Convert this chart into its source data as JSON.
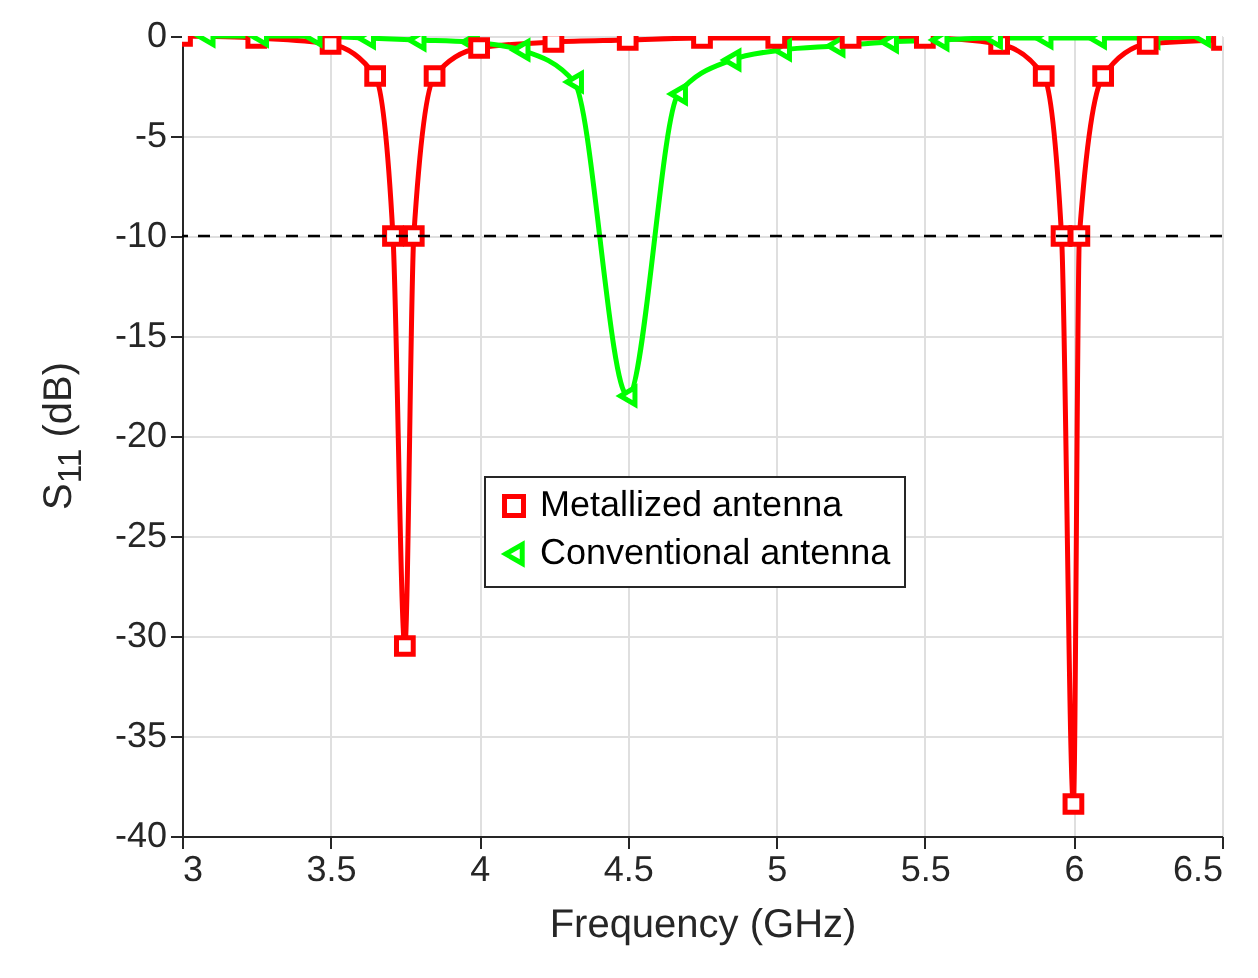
{
  "chart_data": {
    "type": "line",
    "xlabel": "Frequency (GHz)",
    "ylabel": "S$_{11}$ (dB)",
    "xlim": [
      3,
      6.5
    ],
    "xticks": [
      3,
      3.5,
      4,
      4.5,
      5,
      5.5,
      6,
      6.5
    ],
    "ylim": [
      -40,
      0
    ],
    "yticks": [
      -40,
      -35,
      -30,
      -25,
      -20,
      -15,
      -10,
      -5,
      0
    ],
    "grid": true,
    "legend": "center",
    "line_style": "solid",
    "ref_lines": [
      {
        "axis": "y",
        "value": -10,
        "color": "#000000",
        "line_style": "dashed"
      }
    ],
    "series": [
      {
        "name": "Metallized antenna",
        "color": "#ff0000",
        "marker": "square",
        "x": [
          3,
          3.25,
          3.5,
          3.65,
          3.71,
          3.75,
          3.78,
          3.85,
          4,
          4.25,
          4.5,
          4.75,
          5,
          5.25,
          5.5,
          5.75,
          5.9,
          5.96,
          6,
          6.02,
          6.1,
          6.25,
          6.5
        ],
        "values": [
          0,
          -0.1,
          -0.4,
          -2,
          -10,
          -30.5,
          -10,
          -2,
          -0.6,
          -0.3,
          -0.2,
          -0.1,
          -0.1,
          -0.1,
          -0.1,
          -0.4,
          -2,
          -10,
          -38.4,
          -10,
          -2,
          -0.4,
          -0.2
        ]
      },
      {
        "name": "Conventional antenna",
        "color": "#00ff00",
        "marker": "triangle",
        "x": [
          3.08,
          3.26,
          3.44,
          3.62,
          3.79,
          3.97,
          4.14,
          4.32,
          4.5,
          4.67,
          4.85,
          5.02,
          5.2,
          5.38,
          5.55,
          5.73,
          5.9,
          6.08,
          6.26,
          6.43
        ],
        "values": [
          0,
          0,
          0,
          -0.1,
          -0.2,
          -0.3,
          -0.7,
          -2.3,
          -18,
          -2.9,
          -1.2,
          -0.7,
          -0.5,
          -0.3,
          -0.2,
          -0.1,
          -0.1,
          -0.1,
          -0.1,
          0
        ]
      }
    ]
  }
}
